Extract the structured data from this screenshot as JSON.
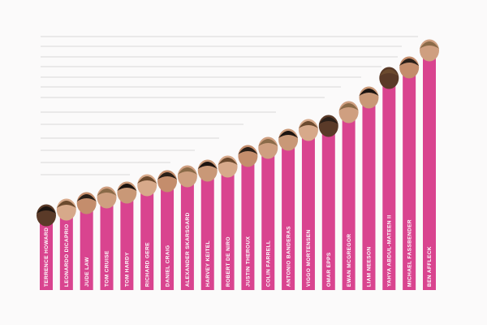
{
  "chart_data": {
    "type": "bar",
    "categories": [
      "TERRENCE HOWARD",
      "LEONARDO DICAPRIO",
      "JUDE LAW",
      "TOM CRUISE",
      "TOM HARDY",
      "RICHARD GERE",
      "DANIEL CRAIG",
      "ALEXANDER SKARSGARD",
      "HARVEY KEITEL",
      "ROBERT DE NIRO",
      "JUSTIN THEROUX",
      "COLIN FARRELL",
      "ANTONIO BANDERAS",
      "VIGGO MORTENSEN",
      "OMAR EPPS",
      "EWAN MCGREGOR",
      "LIAM NEESON",
      "YAHYA ABDUL-MATEEN II",
      "MICHAEL FASSBENDER",
      "BEN AFFLECK"
    ],
    "values": [
      92,
      99,
      107,
      114,
      120,
      129,
      134,
      140,
      147,
      152,
      165,
      175,
      185,
      197,
      202,
      219,
      237,
      261,
      274,
      295
    ],
    "color": "#d9448f",
    "ylim": [
      0,
      320
    ]
  }
}
